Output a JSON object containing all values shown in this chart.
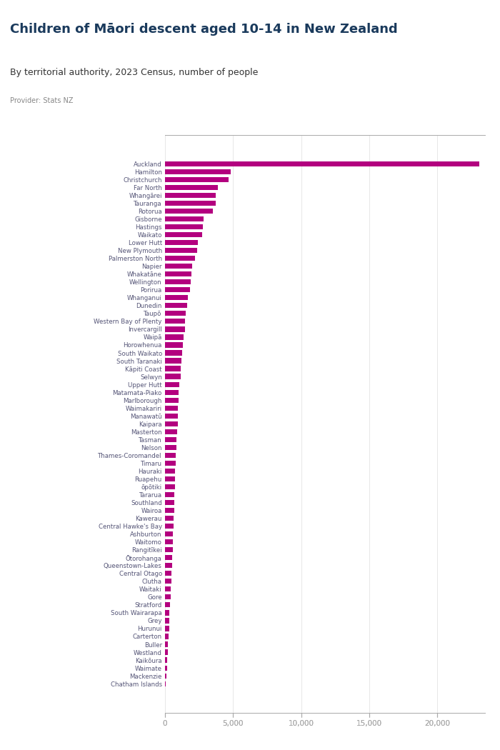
{
  "title": "Children of Māori descent aged 10-14 in New Zealand",
  "subtitle": "By territorial authority, 2023 Census, number of people",
  "provider": "Provider: Stats NZ",
  "bar_color": "#b3007f",
  "background_color": "#ffffff",
  "title_color": "#1a3a5c",
  "subtitle_color": "#444444",
  "provider_color": "#888888",
  "axis_color": "#555577",
  "logo_bg": "#5b6bbf",
  "xlim": [
    0,
    23500
  ],
  "xticks": [
    0,
    5000,
    10000,
    15000,
    20000
  ],
  "xtick_labels": [
    "0",
    "5,000",
    "10,000",
    "15,000",
    "20,000"
  ],
  "categories": [
    "Auckland",
    "Hamilton",
    "Christchurch",
    "Far North",
    "Whangārei",
    "Tauranga",
    "Rotorua",
    "Gisborne",
    "Hastings",
    "Waikato",
    "Lower Hutt",
    "New Plymouth",
    "Palmerston North",
    "Napier",
    "Whakatāne",
    "Wellington",
    "Porirua",
    "Whanganui",
    "Dunedin",
    "Taupō",
    "Western Bay of Plenty",
    "Invercargill",
    "Waipā",
    "Horowhenua",
    "South Waikato",
    "South Taranaki",
    "Kāpiti Coast",
    "Selwyn",
    "Upper Hutt",
    "Matamata-Piako",
    "Marlborough",
    "Waimakariri",
    "Manawatū",
    "Kaipara",
    "Masterton",
    "Tasman",
    "Nelson",
    "Thames-Coromandel",
    "Timaru",
    "Hauraki",
    "Ruapehu",
    "ōpōtiki",
    "Tararua",
    "Southland",
    "Wairoa",
    "Kawerau",
    "Central Hawke's Bay",
    "Ashburton",
    "Waitomo",
    "Rangitīkei",
    "Ōtorohanga",
    "Queenstown-Lakes",
    "Central Otago",
    "Clutha",
    "Waitaki",
    "Gore",
    "Stratford",
    "South Wairarapa",
    "Grey",
    "Hurunui",
    "Carterton",
    "Buller",
    "Westland",
    "Kaikōura",
    "Waimate",
    "Mackenzie",
    "Chatham Islands"
  ],
  "values": [
    23100,
    4800,
    4650,
    3900,
    3750,
    3700,
    3500,
    2850,
    2800,
    2750,
    2400,
    2350,
    2200,
    2000,
    1950,
    1900,
    1850,
    1700,
    1650,
    1500,
    1480,
    1450,
    1350,
    1300,
    1280,
    1200,
    1180,
    1150,
    1050,
    1020,
    980,
    960,
    940,
    920,
    880,
    850,
    820,
    800,
    780,
    760,
    740,
    720,
    700,
    680,
    660,
    640,
    620,
    600,
    580,
    560,
    540,
    520,
    490,
    460,
    440,
    400,
    370,
    340,
    310,
    290,
    260,
    230,
    200,
    170,
    140,
    110,
    60
  ]
}
